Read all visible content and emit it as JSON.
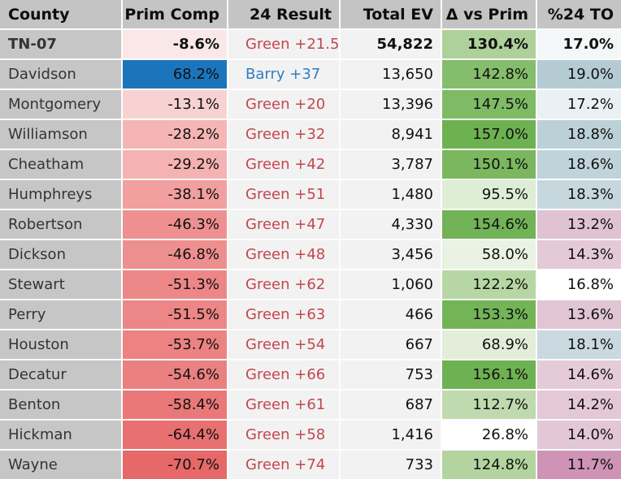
{
  "table": {
    "columns": [
      {
        "label": "County"
      },
      {
        "label": "Prim Comp"
      },
      {
        "label": "24 Result"
      },
      {
        "label": "Total EV"
      },
      {
        "label": "Δ vs Prim"
      },
      {
        "label": "%24 TO"
      }
    ],
    "colors": {
      "header_bg": "#c4c4c4",
      "county_bg": "#c6c6c6",
      "cell_bg": "#f2f2f2",
      "gridline": "#fdfdfd",
      "county_text": "#343434",
      "value_text": "#101010",
      "green_result_text": "#c4464e",
      "blue_result_text": "#2f7ec1",
      "highlight_blue": "#1b75bc"
    },
    "rows": [
      {
        "county": "TN-07",
        "bold": true,
        "prim_comp": "-8.6%",
        "prim_bg": "#fae8e8",
        "result": "Green +21.5",
        "result_color": "#c4464e",
        "total_ev": "54,822",
        "delta": "130.4%",
        "delta_bg": "#aed09a",
        "turnout": "17.0%",
        "turnout_bg": "#f3f7f8"
      },
      {
        "county": "Davidson",
        "bold": false,
        "prim_comp": "68.2%",
        "prim_bg": "#1b75bc",
        "result": "Barry +37",
        "result_color": "#2f7ec1",
        "total_ev": "13,650",
        "delta": "142.8%",
        "delta_bg": "#84bd6b",
        "turnout": "19.0%",
        "turnout_bg": "#b5cbd4"
      },
      {
        "county": "Montgomery",
        "bold": false,
        "prim_comp": "-13.1%",
        "prim_bg": "#f8d2d2",
        "result": "Green +20",
        "result_color": "#c4464e",
        "total_ev": "13,396",
        "delta": "147.5%",
        "delta_bg": "#7fba64",
        "turnout": "17.2%",
        "turnout_bg": "#e9f1f4"
      },
      {
        "county": "Williamson",
        "bold": false,
        "prim_comp": "-28.2%",
        "prim_bg": "#f5b5b5",
        "result": "Green +32",
        "result_color": "#c4464e",
        "total_ev": "8,941",
        "delta": "157.0%",
        "delta_bg": "#6db150",
        "turnout": "18.8%",
        "turnout_bg": "#bcd0d8"
      },
      {
        "county": "Cheatham",
        "bold": false,
        "prim_comp": "-29.2%",
        "prim_bg": "#f4b2b2",
        "result": "Green +42",
        "result_color": "#c4464e",
        "total_ev": "3,787",
        "delta": "150.1%",
        "delta_bg": "#7ab75e",
        "turnout": "18.6%",
        "turnout_bg": "#c0d3da"
      },
      {
        "county": "Humphreys",
        "bold": false,
        "prim_comp": "-38.1%",
        "prim_bg": "#f19f9f",
        "result": "Green +51",
        "result_color": "#c4464e",
        "total_ev": "1,480",
        "delta": "95.5%",
        "delta_bg": "#deedd5",
        "turnout": "18.3%",
        "turnout_bg": "#c6d7dd"
      },
      {
        "county": "Robertson",
        "bold": false,
        "prim_comp": "-46.3%",
        "prim_bg": "#ee9090",
        "result": "Green +47",
        "result_color": "#c4464e",
        "total_ev": "4,330",
        "delta": "154.6%",
        "delta_bg": "#71b356",
        "turnout": "13.2%",
        "turnout_bg": "#e0c2d3"
      },
      {
        "county": "Dickson",
        "bold": false,
        "prim_comp": "-46.8%",
        "prim_bg": "#ee8f8f",
        "result": "Green +48",
        "result_color": "#c4464e",
        "total_ev": "3,456",
        "delta": "58.0%",
        "delta_bg": "#e9f2e3",
        "turnout": "14.3%",
        "turnout_bg": "#e4c9d7"
      },
      {
        "county": "Stewart",
        "bold": false,
        "prim_comp": "-51.3%",
        "prim_bg": "#ed8787",
        "result": "Green +62",
        "result_color": "#c4464e",
        "total_ev": "1,060",
        "delta": "122.2%",
        "delta_bg": "#b6d7a3",
        "turnout": "16.8%",
        "turnout_bg": "#ffffff"
      },
      {
        "county": "Perry",
        "bold": false,
        "prim_comp": "-51.5%",
        "prim_bg": "#ed8686",
        "result": "Green +63",
        "result_color": "#c4464e",
        "total_ev": "466",
        "delta": "153.3%",
        "delta_bg": "#73b457",
        "turnout": "13.6%",
        "turnout_bg": "#e2c5d5"
      },
      {
        "county": "Houston",
        "bold": false,
        "prim_comp": "-53.7%",
        "prim_bg": "#ec8282",
        "result": "Green +54",
        "result_color": "#c4464e",
        "total_ev": "667",
        "delta": "68.9%",
        "delta_bg": "#e2eeda",
        "turnout": "18.1%",
        "turnout_bg": "#c9d9df"
      },
      {
        "county": "Decatur",
        "bold": false,
        "prim_comp": "-54.6%",
        "prim_bg": "#eb8080",
        "result": "Green +66",
        "result_color": "#c4464e",
        "total_ev": "753",
        "delta": "156.1%",
        "delta_bg": "#6eb152",
        "turnout": "14.6%",
        "turnout_bg": "#e5cbd8"
      },
      {
        "county": "Benton",
        "bold": false,
        "prim_comp": "-58.4%",
        "prim_bg": "#ea7878",
        "result": "Green +61",
        "result_color": "#c4464e",
        "total_ev": "687",
        "delta": "112.7%",
        "delta_bg": "#bfdaae",
        "turnout": "14.2%",
        "turnout_bg": "#e4c8d6"
      },
      {
        "county": "Hickman",
        "bold": false,
        "prim_comp": "-64.4%",
        "prim_bg": "#e87070",
        "result": "Green +58",
        "result_color": "#c4464e",
        "total_ev": "1,416",
        "delta": "26.8%",
        "delta_bg": "#ffffff",
        "turnout": "14.0%",
        "turnout_bg": "#e3c7d6"
      },
      {
        "county": "Wayne",
        "bold": false,
        "prim_comp": "-70.7%",
        "prim_bg": "#e66868",
        "result": "Green +74",
        "result_color": "#c4464e",
        "total_ev": "733",
        "delta": "124.8%",
        "delta_bg": "#b3d49f",
        "turnout": "11.7%",
        "turnout_bg": "#ce93b5"
      }
    ]
  }
}
